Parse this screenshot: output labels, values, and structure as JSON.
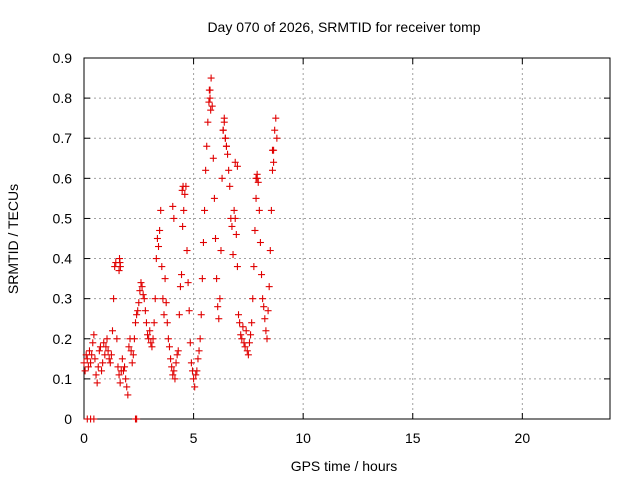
{
  "chart_data": {
    "type": "scatter",
    "title": "Day 070 of 2026, SRMTID for receiver tomp",
    "xlabel": "GPS time / hours",
    "ylabel": "SRMTID / TECUs",
    "xlim": [
      0,
      24
    ],
    "ylim": [
      0,
      0.9
    ],
    "xticks": [
      0,
      5,
      10,
      15,
      20
    ],
    "yticks": [
      0,
      0.1,
      0.2,
      0.3,
      0.4,
      0.5,
      0.6,
      0.7,
      0.8,
      0.9
    ],
    "xtick_labels": [
      "0",
      "5",
      "10",
      "15",
      "20"
    ],
    "ytick_labels": [
      "0",
      "0.1",
      "0.2",
      "0.3",
      "0.4",
      "0.5",
      "0.6",
      "0.7",
      "0.8",
      "0.9"
    ],
    "grid": true,
    "marker": "+",
    "color": "#e00000",
    "series": [
      {
        "name": "SRMTID",
        "x": [
          0.0,
          0.05,
          0.1,
          0.15,
          0.2,
          0.25,
          0.3,
          0.35,
          0.4,
          0.45,
          0.5,
          0.55,
          0.6,
          0.65,
          0.7,
          0.75,
          0.8,
          0.85,
          0.9,
          0.95,
          1.0,
          1.05,
          1.1,
          1.15,
          1.2,
          1.25,
          1.3,
          1.35,
          1.4,
          1.45,
          1.5,
          1.55,
          1.6,
          1.65,
          1.7,
          1.75,
          1.8,
          1.85,
          1.9,
          1.95,
          2.0,
          2.05,
          2.1,
          2.15,
          2.2,
          2.25,
          2.3,
          2.35,
          2.4,
          2.45,
          2.5,
          2.55,
          2.6,
          2.65,
          2.7,
          2.75,
          2.8,
          2.85,
          2.9,
          2.95,
          3.0,
          3.05,
          3.1,
          3.15,
          3.2,
          3.25,
          3.3,
          3.35,
          3.4,
          3.45,
          3.5,
          3.55,
          3.6,
          3.65,
          3.7,
          3.75,
          3.8,
          3.85,
          3.9,
          3.95,
          4.0,
          4.05,
          4.1,
          4.15,
          4.2,
          4.25,
          4.3,
          4.35,
          4.4,
          4.45,
          4.5,
          4.55,
          4.6,
          4.65,
          4.7,
          4.75,
          4.8,
          4.85,
          4.9,
          4.95,
          5.0,
          5.05,
          5.1,
          5.15,
          5.2,
          5.25,
          5.3,
          5.35,
          5.4,
          5.45,
          5.5,
          5.55,
          5.6,
          5.65,
          5.7,
          5.75,
          5.8,
          5.85,
          5.9,
          5.95,
          6.0,
          6.05,
          6.1,
          6.15,
          6.2,
          6.25,
          6.3,
          6.35,
          6.4,
          6.45,
          6.5,
          6.55,
          6.6,
          6.65,
          6.7,
          6.75,
          6.8,
          6.85,
          6.9,
          6.95,
          7.0,
          7.05,
          7.1,
          7.15,
          7.2,
          7.25,
          7.3,
          7.35,
          7.4,
          7.45,
          7.5,
          7.55,
          7.6,
          7.65,
          7.7,
          7.75,
          7.8,
          7.85,
          7.9,
          7.95,
          8.0,
          8.05,
          8.1,
          8.15,
          8.2,
          8.25,
          8.3,
          8.35,
          8.4,
          8.45,
          8.5,
          8.55,
          8.6,
          8.65,
          8.7,
          8.75,
          8.8,
          0.15,
          0.3,
          0.45,
          2.35,
          2.4,
          1.6,
          1.62,
          1.64,
          1.66,
          4.05,
          4.1,
          4.48,
          4.52,
          5.72,
          5.75,
          5.78,
          6.35,
          6.4,
          6.45,
          6.5,
          6.9,
          7.0,
          7.85,
          7.9,
          8.6,
          8.65
        ],
        "y": [
          0.14,
          0.12,
          0.16,
          0.15,
          0.13,
          0.17,
          0.14,
          0.16,
          0.19,
          0.21,
          0.15,
          0.11,
          0.09,
          0.13,
          0.17,
          0.18,
          0.12,
          0.14,
          0.19,
          0.16,
          0.18,
          0.2,
          0.17,
          0.15,
          0.14,
          0.16,
          0.22,
          0.3,
          0.38,
          0.39,
          0.2,
          0.13,
          0.11,
          0.09,
          0.12,
          0.15,
          0.12,
          0.13,
          0.1,
          0.08,
          0.06,
          0.18,
          0.2,
          0.17,
          0.14,
          0.16,
          0.2,
          0.24,
          0.26,
          0.27,
          0.29,
          0.32,
          0.34,
          0.33,
          0.31,
          0.3,
          0.27,
          0.24,
          0.21,
          0.2,
          0.22,
          0.19,
          0.18,
          0.2,
          0.24,
          0.3,
          0.4,
          0.45,
          0.43,
          0.47,
          0.52,
          0.38,
          0.3,
          0.26,
          0.35,
          0.29,
          0.24,
          0.2,
          0.18,
          0.15,
          0.13,
          0.11,
          0.12,
          0.1,
          0.14,
          0.16,
          0.17,
          0.26,
          0.33,
          0.36,
          0.48,
          0.52,
          0.56,
          0.58,
          0.42,
          0.34,
          0.27,
          0.19,
          0.14,
          0.12,
          0.1,
          0.08,
          0.11,
          0.12,
          0.15,
          0.17,
          0.2,
          0.26,
          0.35,
          0.44,
          0.52,
          0.62,
          0.68,
          0.74,
          0.79,
          0.82,
          0.85,
          0.78,
          0.65,
          0.55,
          0.45,
          0.35,
          0.28,
          0.25,
          0.3,
          0.42,
          0.6,
          0.72,
          0.75,
          0.7,
          0.68,
          0.66,
          0.62,
          0.58,
          0.5,
          0.48,
          0.41,
          0.52,
          0.5,
          0.46,
          0.38,
          0.26,
          0.24,
          0.21,
          0.2,
          0.23,
          0.19,
          0.18,
          0.22,
          0.17,
          0.16,
          0.19,
          0.21,
          0.24,
          0.3,
          0.38,
          0.47,
          0.55,
          0.6,
          0.59,
          0.52,
          0.44,
          0.36,
          0.3,
          0.28,
          0.25,
          0.22,
          0.2,
          0.27,
          0.33,
          0.42,
          0.52,
          0.62,
          0.67,
          0.72,
          0.75,
          0.7,
          0,
          0,
          0,
          0,
          0,
          0.37,
          0.4,
          0.39,
          0.38,
          0.53,
          0.5,
          0.57,
          0.58,
          0.82,
          0.8,
          0.77,
          0.72,
          0.74,
          0.7,
          0.68,
          0.64,
          0.63,
          0.6,
          0.61,
          0.67,
          0.64
        ]
      }
    ]
  }
}
